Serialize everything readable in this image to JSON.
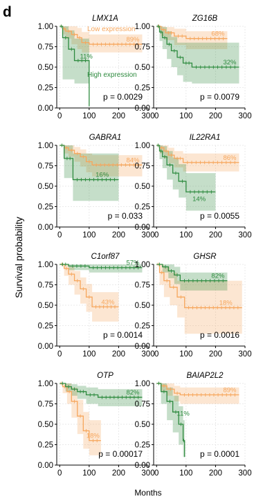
{
  "figure": {
    "panel_letter": "d",
    "ylabel": "Survival probability",
    "xlabel": "Months",
    "legend_low": "Low expression",
    "legend_high": "High expression"
  },
  "colors": {
    "low": "#f6a65c",
    "high": "#2d8a3e",
    "grid": "#e4e4e4",
    "axis": "#000000"
  },
  "chart_data": [
    {
      "type": "line",
      "gene": "LMX1A",
      "p_label": "p = 0.0029",
      "xlim": [
        -10,
        300
      ],
      "ylim": [
        0,
        1
      ],
      "xticks": [
        "0",
        "100",
        "200",
        "300"
      ],
      "yticks": [
        "0.00",
        "0.25",
        "0.50",
        "0.75",
        "1.00"
      ],
      "series": [
        {
          "name": "Low expression",
          "pct_label": "89%",
          "pct_value": 0.89,
          "x": [
            0,
            10,
            20,
            40,
            60,
            75,
            100,
            280
          ],
          "y": [
            1,
            0.97,
            0.94,
            0.9,
            0.86,
            0.8,
            0.78,
            0.78
          ],
          "upper": [
            1,
            1,
            1,
            1,
            0.98,
            0.93,
            0.9,
            0.9
          ],
          "lower": [
            1,
            0.9,
            0.85,
            0.78,
            0.72,
            0.68,
            0.68,
            0.68
          ]
        },
        {
          "name": "High expression",
          "pct_label": "11%",
          "pct_value": 0.11,
          "x": [
            0,
            10,
            30,
            50,
            100
          ],
          "y": [
            1,
            0.86,
            0.72,
            0.58,
            0.02
          ],
          "upper": [
            1,
            1,
            0.95,
            0.85,
            0.86
          ],
          "lower": [
            1,
            0.35,
            0.35,
            0.3,
            0.02
          ]
        }
      ]
    },
    {
      "type": "line",
      "gene": "ZG16B",
      "p_label": "p = 0.0079",
      "xlim": [
        -10,
        300
      ],
      "ylim": [
        0,
        1
      ],
      "xticks": [
        "0",
        "100",
        "200",
        "300"
      ],
      "yticks": [
        "0.00",
        "0.25",
        "0.50",
        "0.75",
        "1.00"
      ],
      "series": [
        {
          "name": "Low expression",
          "pct_label": "68%",
          "pct_value": 0.68,
          "x": [
            0,
            15,
            30,
            60,
            100,
            240
          ],
          "y": [
            1,
            0.96,
            0.92,
            0.88,
            0.85,
            0.85
          ],
          "upper": [
            1,
            1,
            0.99,
            0.97,
            0.94,
            0.94
          ],
          "lower": [
            1,
            0.88,
            0.83,
            0.77,
            0.72,
            0.72
          ]
        },
        {
          "name": "High expression",
          "pct_label": "32%",
          "pct_value": 0.32,
          "x": [
            0,
            10,
            20,
            35,
            50,
            70,
            90,
            120,
            280
          ],
          "y": [
            1,
            0.93,
            0.86,
            0.78,
            0.7,
            0.62,
            0.55,
            0.5,
            0.5
          ],
          "upper": [
            1,
            1,
            0.99,
            0.94,
            0.87,
            0.8,
            0.8,
            0.8,
            0.8
          ],
          "lower": [
            1,
            0.82,
            0.72,
            0.6,
            0.5,
            0.4,
            0.32,
            0.3,
            0.3
          ]
        }
      ]
    },
    {
      "type": "line",
      "gene": "GABRA1",
      "p_label": "p = 0.033",
      "xlim": [
        -10,
        300
      ],
      "ylim": [
        0,
        1
      ],
      "xticks": [
        "0",
        "100",
        "200",
        "300"
      ],
      "yticks": [
        "0.00",
        "0.25",
        "0.50",
        "0.75",
        "1.00"
      ],
      "series": [
        {
          "name": "Low expression",
          "pct_label": "84%",
          "pct_value": 0.84,
          "x": [
            0,
            15,
            30,
            50,
            70,
            90,
            110,
            280
          ],
          "y": [
            1,
            0.97,
            0.94,
            0.9,
            0.86,
            0.8,
            0.76,
            0.76
          ],
          "upper": [
            1,
            1,
            1,
            0.98,
            0.95,
            0.9,
            0.88,
            0.88
          ],
          "lower": [
            1,
            0.9,
            0.86,
            0.8,
            0.74,
            0.67,
            0.62,
            0.62
          ]
        },
        {
          "name": "High expression",
          "pct_label": "16%",
          "pct_value": 0.16,
          "x": [
            0,
            15,
            45,
            200
          ],
          "y": [
            1,
            0.84,
            0.58,
            0.58
          ],
          "upper": [
            1,
            1,
            0.9,
            0.9
          ],
          "lower": [
            1,
            0.6,
            0.32,
            0.32
          ]
        }
      ]
    },
    {
      "type": "line",
      "gene": "IL22RA1",
      "p_label": "p = 0.0055",
      "xlim": [
        -10,
        300
      ],
      "ylim": [
        0,
        1
      ],
      "xticks": [
        "0",
        "100",
        "200",
        "300"
      ],
      "yticks": [
        "0.00",
        "0.25",
        "0.50",
        "0.75",
        "1.00"
      ],
      "series": [
        {
          "name": "Low expression",
          "pct_label": "86%",
          "pct_value": 0.86,
          "x": [
            0,
            10,
            25,
            40,
            60,
            90,
            280
          ],
          "y": [
            1,
            0.97,
            0.93,
            0.88,
            0.84,
            0.79,
            0.79
          ],
          "upper": [
            1,
            1,
            1,
            0.97,
            0.93,
            0.9,
            0.9
          ],
          "lower": [
            1,
            0.9,
            0.84,
            0.78,
            0.73,
            0.68,
            0.68
          ]
        },
        {
          "name": "High expression",
          "pct_label": "14%",
          "pct_value": 0.14,
          "x": [
            0,
            10,
            20,
            35,
            55,
            75,
            100,
            200
          ],
          "y": [
            1,
            0.93,
            0.86,
            0.76,
            0.66,
            0.56,
            0.43,
            0.43
          ],
          "upper": [
            1,
            1,
            0.99,
            0.93,
            0.85,
            0.77,
            0.66,
            0.66
          ],
          "lower": [
            1,
            0.83,
            0.72,
            0.58,
            0.46,
            0.36,
            0.2,
            0.2
          ]
        }
      ]
    },
    {
      "type": "line",
      "gene": "C1orf87",
      "p_label": "p = 0.0014",
      "xlim": [
        -10,
        300
      ],
      "ylim": [
        0,
        1
      ],
      "xticks": [
        "0",
        "100",
        "200",
        "300"
      ],
      "yticks": [
        "0.00",
        "0.25",
        "0.50",
        "0.75",
        "1.00"
      ],
      "series": [
        {
          "name": "Low expression",
          "pct_label": "43%",
          "pct_value": 0.43,
          "x": [
            0,
            15,
            30,
            50,
            70,
            90,
            110,
            200
          ],
          "y": [
            1,
            0.95,
            0.88,
            0.8,
            0.7,
            0.6,
            0.48,
            0.48
          ],
          "upper": [
            1,
            1,
            0.97,
            0.92,
            0.84,
            0.76,
            0.66,
            0.66
          ],
          "lower": [
            1,
            0.86,
            0.75,
            0.63,
            0.52,
            0.42,
            0.3,
            0.3
          ]
        },
        {
          "name": "High expression",
          "pct_label": "57%",
          "pct_value": 0.57,
          "x": [
            0,
            30,
            100,
            280
          ],
          "y": [
            1,
            0.98,
            0.96,
            0.96
          ],
          "upper": [
            1,
            1,
            1,
            1
          ],
          "lower": [
            1,
            0.93,
            0.9,
            0.9
          ]
        }
      ]
    },
    {
      "type": "line",
      "gene": "GHSR",
      "p_label": "p = 0.0016",
      "xlim": [
        -10,
        300
      ],
      "ylim": [
        0,
        1
      ],
      "xticks": [
        "0",
        "100",
        "200",
        "300"
      ],
      "yticks": [
        "0.00",
        "0.25",
        "0.50",
        "0.75",
        "1.00"
      ],
      "series": [
        {
          "name": "Low expression",
          "pct_label": "18%",
          "pct_value": 0.18,
          "x": [
            0,
            10,
            25,
            45,
            70,
            95,
            290
          ],
          "y": [
            1,
            0.9,
            0.8,
            0.72,
            0.6,
            0.47,
            0.47
          ],
          "upper": [
            1,
            1,
            0.97,
            0.9,
            0.8,
            0.8,
            0.8
          ],
          "lower": [
            1,
            0.75,
            0.6,
            0.5,
            0.35,
            0.15,
            0.15
          ]
        },
        {
          "name": "High expression",
          "pct_label": "82%",
          "pct_value": 0.82,
          "x": [
            0,
            20,
            40,
            60,
            80,
            240
          ],
          "y": [
            1,
            0.97,
            0.92,
            0.87,
            0.8,
            0.8
          ],
          "upper": [
            1,
            1,
            1,
            0.97,
            0.9,
            0.9
          ],
          "lower": [
            1,
            0.9,
            0.83,
            0.76,
            0.68,
            0.68
          ]
        }
      ]
    },
    {
      "type": "line",
      "gene": "OTP",
      "p_label": "p = 0.00017",
      "xlim": [
        -10,
        300
      ],
      "ylim": [
        0,
        1
      ],
      "xticks": [
        "0",
        "100",
        "200",
        "300"
      ],
      "yticks": [
        "0.00",
        "0.25",
        "0.50",
        "0.75",
        "1.00"
      ],
      "series": [
        {
          "name": "Low expression",
          "pct_label": "18%",
          "pct_value": 0.18,
          "x": [
            0,
            10,
            25,
            40,
            60,
            80,
            100,
            140
          ],
          "y": [
            1,
            0.96,
            0.9,
            0.78,
            0.6,
            0.42,
            0.3,
            0.3
          ],
          "upper": [
            1,
            1,
            1,
            0.95,
            0.8,
            0.65,
            0.55,
            0.55
          ],
          "lower": [
            1,
            0.88,
            0.75,
            0.58,
            0.38,
            0.2,
            0.12,
            0.12
          ]
        },
        {
          "name": "High expression",
          "pct_label": "82%",
          "pct_value": 0.82,
          "x": [
            0,
            20,
            40,
            60,
            90,
            130,
            280
          ],
          "y": [
            1,
            0.96,
            0.93,
            0.9,
            0.86,
            0.83,
            0.83
          ],
          "upper": [
            1,
            1,
            0.99,
            0.97,
            0.95,
            0.93,
            0.93
          ],
          "lower": [
            1,
            0.9,
            0.85,
            0.81,
            0.75,
            0.72,
            0.72
          ]
        }
      ]
    },
    {
      "type": "line",
      "gene": "BAIAP2L2",
      "p_label": "p = 0.0001",
      "xlim": [
        -10,
        300
      ],
      "ylim": [
        0,
        1
      ],
      "xticks": [
        "0",
        "100",
        "200",
        "300"
      ],
      "yticks": [
        "0.00",
        "0.25",
        "0.50",
        "0.75",
        "1.00"
      ],
      "series": [
        {
          "name": "Low expression",
          "pct_label": "89%",
          "pct_value": 0.89,
          "x": [
            0,
            15,
            35,
            60,
            80,
            280
          ],
          "y": [
            1,
            0.97,
            0.93,
            0.88,
            0.86,
            0.86
          ],
          "upper": [
            1,
            1,
            1,
            0.97,
            0.95,
            0.95
          ],
          "lower": [
            1,
            0.9,
            0.85,
            0.78,
            0.75,
            0.75
          ]
        },
        {
          "name": "High expression",
          "pct_label": "11%",
          "pct_value": 0.11,
          "x": [
            0,
            15,
            35,
            55,
            75,
            90,
            95
          ],
          "y": [
            1,
            0.9,
            0.78,
            0.65,
            0.5,
            0.3,
            0.1
          ],
          "upper": [
            1,
            1,
            0.95,
            0.85,
            0.72,
            0.55,
            0.4
          ],
          "lower": [
            1,
            0.75,
            0.55,
            0.4,
            0.25,
            0.1,
            0.05
          ]
        }
      ]
    }
  ]
}
